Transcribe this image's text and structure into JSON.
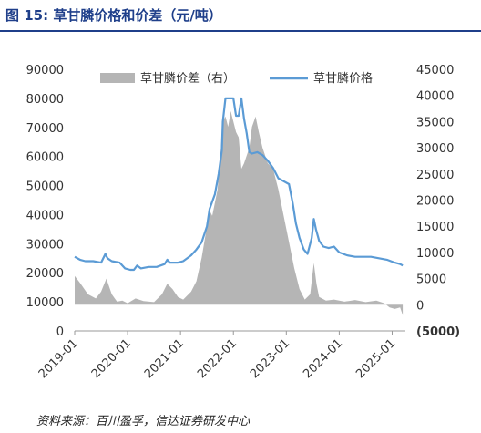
{
  "header": {
    "title": "图 15:  草甘膦价格和价差（元/吨）"
  },
  "footer": {
    "source": "资料来源：百川盈孚，信达证券研发中心"
  },
  "colors": {
    "title": "#1f3f8a",
    "line": "#5b9bd5",
    "area": "#b5b5b5",
    "negative_tick": "#e00000"
  },
  "chart_data": {
    "type": "line",
    "title": "",
    "xlabel": "",
    "ylabel": "",
    "x_ticks": [
      "2019-01",
      "2020-01",
      "2021-01",
      "2022-01",
      "2023-01",
      "2024-01",
      "2025-01"
    ],
    "x_range": [
      2019.0,
      2025.25
    ],
    "y_left": {
      "lim": [
        0,
        90000
      ],
      "ticks": [
        "0",
        "10000",
        "20000",
        "30000",
        "40000",
        "50000",
        "60000",
        "70000",
        "80000",
        "90000"
      ]
    },
    "y_right": {
      "lim": [
        -5000,
        45000
      ],
      "ticks": [
        "(5000)",
        "0",
        "5000",
        "10000",
        "15000",
        "20000",
        "25000",
        "30000",
        "35000",
        "40000",
        "45000"
      ]
    },
    "legend_position": "top",
    "series": [
      {
        "name": "草甘膦价差（右）",
        "kind": "area",
        "axis": "right",
        "points": [
          [
            2019.0,
            5500
          ],
          [
            2019.1,
            4200
          ],
          [
            2019.25,
            2000
          ],
          [
            2019.4,
            1200
          ],
          [
            2019.5,
            2500
          ],
          [
            2019.6,
            5000
          ],
          [
            2019.7,
            2000
          ],
          [
            2019.8,
            600
          ],
          [
            2019.9,
            800
          ],
          [
            2020.0,
            300
          ],
          [
            2020.15,
            1200
          ],
          [
            2020.3,
            700
          ],
          [
            2020.5,
            500
          ],
          [
            2020.65,
            2000
          ],
          [
            2020.75,
            4000
          ],
          [
            2020.85,
            3000
          ],
          [
            2020.95,
            1500
          ],
          [
            2021.05,
            1000
          ],
          [
            2021.2,
            2500
          ],
          [
            2021.3,
            4500
          ],
          [
            2021.4,
            9000
          ],
          [
            2021.5,
            15000
          ],
          [
            2021.55,
            18000
          ],
          [
            2021.6,
            17000
          ],
          [
            2021.7,
            22000
          ],
          [
            2021.75,
            28000
          ],
          [
            2021.8,
            35000
          ],
          [
            2021.85,
            36000
          ],
          [
            2021.9,
            34000
          ],
          [
            2021.95,
            37000
          ],
          [
            2022.0,
            35000
          ],
          [
            2022.05,
            33000
          ],
          [
            2022.1,
            32000
          ],
          [
            2022.15,
            26000
          ],
          [
            2022.2,
            27000
          ],
          [
            2022.3,
            30000
          ],
          [
            2022.35,
            34000
          ],
          [
            2022.42,
            36000
          ],
          [
            2022.48,
            33000
          ],
          [
            2022.55,
            30000
          ],
          [
            2022.65,
            27000
          ],
          [
            2022.75,
            26000
          ],
          [
            2022.85,
            22000
          ],
          [
            2022.95,
            17000
          ],
          [
            2023.05,
            12000
          ],
          [
            2023.15,
            7000
          ],
          [
            2023.25,
            3000
          ],
          [
            2023.35,
            1000
          ],
          [
            2023.45,
            2000
          ],
          [
            2023.52,
            8000
          ],
          [
            2023.57,
            4000
          ],
          [
            2023.62,
            1500
          ],
          [
            2023.75,
            800
          ],
          [
            2023.9,
            1000
          ],
          [
            2024.1,
            600
          ],
          [
            2024.3,
            900
          ],
          [
            2024.5,
            500
          ],
          [
            2024.7,
            800
          ],
          [
            2024.85,
            300
          ],
          [
            2024.95,
            -500
          ],
          [
            2025.05,
            -800
          ],
          [
            2025.15,
            -500
          ],
          [
            2025.2,
            -2000
          ]
        ]
      },
      {
        "name": "草甘膦价格",
        "kind": "line",
        "axis": "left",
        "points": [
          [
            2019.0,
            25500
          ],
          [
            2019.1,
            24500
          ],
          [
            2019.2,
            24000
          ],
          [
            2019.35,
            24000
          ],
          [
            2019.5,
            23500
          ],
          [
            2019.58,
            26500
          ],
          [
            2019.62,
            25000
          ],
          [
            2019.7,
            24000
          ],
          [
            2019.85,
            23500
          ],
          [
            2019.95,
            21500
          ],
          [
            2020.05,
            21000
          ],
          [
            2020.12,
            21000
          ],
          [
            2020.18,
            22500
          ],
          [
            2020.25,
            21500
          ],
          [
            2020.4,
            22000
          ],
          [
            2020.55,
            22000
          ],
          [
            2020.7,
            23000
          ],
          [
            2020.75,
            24500
          ],
          [
            2020.8,
            23500
          ],
          [
            2020.95,
            23500
          ],
          [
            2021.05,
            24000
          ],
          [
            2021.2,
            26000
          ],
          [
            2021.3,
            28000
          ],
          [
            2021.4,
            30500
          ],
          [
            2021.5,
            36000
          ],
          [
            2021.55,
            42000
          ],
          [
            2021.6,
            44500
          ],
          [
            2021.65,
            47000
          ],
          [
            2021.72,
            54000
          ],
          [
            2021.78,
            62000
          ],
          [
            2021.8,
            72000
          ],
          [
            2021.85,
            80000
          ],
          [
            2021.9,
            80000
          ],
          [
            2022.0,
            80000
          ],
          [
            2022.05,
            74000
          ],
          [
            2022.1,
            74000
          ],
          [
            2022.15,
            80000
          ],
          [
            2022.2,
            73000
          ],
          [
            2022.25,
            68000
          ],
          [
            2022.3,
            61500
          ],
          [
            2022.35,
            61000
          ],
          [
            2022.45,
            61500
          ],
          [
            2022.55,
            60500
          ],
          [
            2022.65,
            58500
          ],
          [
            2022.75,
            56000
          ],
          [
            2022.85,
            52500
          ],
          [
            2022.95,
            51500
          ],
          [
            2023.05,
            50500
          ],
          [
            2023.12,
            44000
          ],
          [
            2023.18,
            37000
          ],
          [
            2023.25,
            32000
          ],
          [
            2023.33,
            28000
          ],
          [
            2023.4,
            26500
          ],
          [
            2023.48,
            32000
          ],
          [
            2023.52,
            38500
          ],
          [
            2023.56,
            35000
          ],
          [
            2023.62,
            31000
          ],
          [
            2023.7,
            29000
          ],
          [
            2023.8,
            28500
          ],
          [
            2023.9,
            29000
          ],
          [
            2024.0,
            27000
          ],
          [
            2024.15,
            26000
          ],
          [
            2024.3,
            25500
          ],
          [
            2024.45,
            25500
          ],
          [
            2024.6,
            25500
          ],
          [
            2024.75,
            25000
          ],
          [
            2024.9,
            24500
          ],
          [
            2025.05,
            23500
          ],
          [
            2025.15,
            23000
          ],
          [
            2025.2,
            22500
          ]
        ]
      }
    ]
  }
}
